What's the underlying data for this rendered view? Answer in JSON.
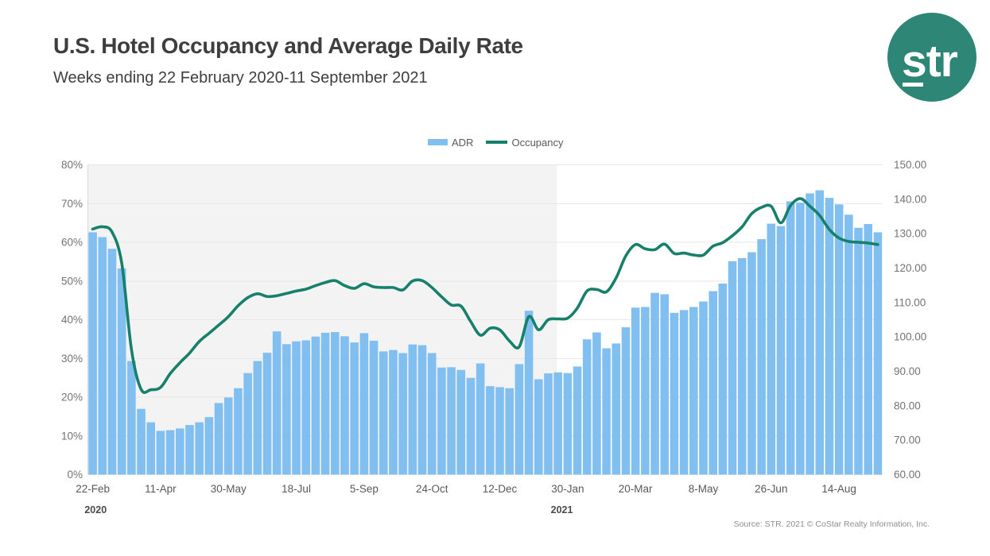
{
  "header": {
    "title": "U.S. Hotel Occupancy and Average Daily Rate",
    "subtitle": "Weeks ending 22 February 2020-11 September 2021"
  },
  "logo": {
    "text": "str"
  },
  "legend": {
    "adr_label": "ADR",
    "occupancy_label": "Occupancy"
  },
  "source": "Source: STR. 2021 © CoStar Realty Information, Inc.",
  "colors": {
    "bar": "#82BFF1",
    "line": "#17806B",
    "logo_teal": "#2E8677",
    "shade": "#F3F3F3",
    "grid": "#E7E7E7",
    "axis_line": "#D9D9D9",
    "axis_text": "#737373",
    "x_tick_text": "#595959",
    "year_text": "#4A4A4A"
  },
  "chart_data": {
    "type": "combo-bar-line",
    "title": "U.S. Hotel Occupancy and Average Daily Rate",
    "subtitle": "Weeks ending 22 February 2020-11 September 2021",
    "n_points": 82,
    "x_tick_labels": [
      "22-Feb",
      "11-Apr",
      "30-May",
      "18-Jul",
      "5-Sep",
      "24-Oct",
      "12-Dec",
      "30-Jan",
      "20-Mar",
      "8-May",
      "26-Jun",
      "14-Aug"
    ],
    "x_tick_indices": [
      0,
      7,
      14,
      21,
      28,
      35,
      42,
      49,
      56,
      63,
      70,
      77
    ],
    "year_labels": [
      {
        "text": "2020",
        "at_index": 0.3
      },
      {
        "text": "2021",
        "at_index": 48.4
      }
    ],
    "left_axis": {
      "min": 0,
      "max": 80,
      "step": 10,
      "format": "percent",
      "labels": [
        "0%",
        "10%",
        "20%",
        "30%",
        "40%",
        "50%",
        "60%",
        "70%",
        "80%"
      ]
    },
    "right_axis": {
      "min": 60,
      "max": 150,
      "step": 10,
      "labels": [
        "60.00",
        "70.00",
        "80.00",
        "90.00",
        "100.00",
        "110.00",
        "120.00",
        "130.00",
        "140.00",
        "150.00"
      ]
    },
    "grid": true,
    "legend_position": "top-center",
    "shaded_region": {
      "from_index": 0,
      "to_index": 48.4
    },
    "series": [
      {
        "name": "ADR",
        "type": "bar",
        "axis": "right",
        "values": [
          130.4,
          129.0,
          125.6,
          119.9,
          93.0,
          79.1,
          75.2,
          72.7,
          72.9,
          73.4,
          74.4,
          75.2,
          76.7,
          80.8,
          82.4,
          85.1,
          89.5,
          93.0,
          95.4,
          101.6,
          97.9,
          98.7,
          99.0,
          100.1,
          101.2,
          101.4,
          100.2,
          98.4,
          101.1,
          98.9,
          95.8,
          96.2,
          95.3,
          97.8,
          97.6,
          95.3,
          91.1,
          91.2,
          90.4,
          88.1,
          92.3,
          85.7,
          85.4,
          85.1,
          92.1,
          107.6,
          87.7,
          89.4,
          89.7,
          89.5,
          91.4,
          99.3,
          101.3,
          96.7,
          98.1,
          102.8,
          108.5,
          108.7,
          112.8,
          112.4,
          107.0,
          107.8,
          108.7,
          110.3,
          113.3,
          115.5,
          122.0,
          122.9,
          124.6,
          128.4,
          132.9,
          132.2,
          139.4,
          139.0,
          141.7,
          142.6,
          140.4,
          138.5,
          135.5,
          131.7,
          132.8,
          130.4
        ]
      },
      {
        "name": "Occupancy",
        "type": "line",
        "axis": "left",
        "values": [
          63.4,
          64.0,
          62.6,
          54.5,
          32.2,
          22.0,
          21.9,
          22.5,
          26.1,
          28.9,
          31.4,
          34.4,
          36.5,
          38.6,
          40.8,
          43.6,
          45.7,
          46.7,
          46.0,
          46.2,
          46.8,
          47.4,
          47.9,
          48.8,
          49.6,
          50.1,
          48.8,
          48.1,
          49.3,
          48.5,
          48.3,
          48.3,
          47.7,
          50.0,
          50.1,
          48.3,
          45.9,
          43.8,
          43.5,
          39.5,
          36.0,
          37.8,
          37.4,
          34.5,
          33.0,
          40.8,
          37.4,
          40.0,
          40.2,
          40.4,
          43.0,
          47.4,
          47.8,
          47.2,
          50.8,
          56.5,
          59.4,
          58.3,
          58.1,
          59.5,
          57.1,
          57.2,
          56.7,
          56.7,
          59.0,
          59.9,
          61.7,
          64.0,
          67.4,
          69.0,
          69.3,
          65.0,
          69.5,
          71.3,
          69.3,
          66.9,
          63.3,
          61.1,
          60.2,
          60.0,
          59.8,
          59.4
        ]
      }
    ]
  }
}
